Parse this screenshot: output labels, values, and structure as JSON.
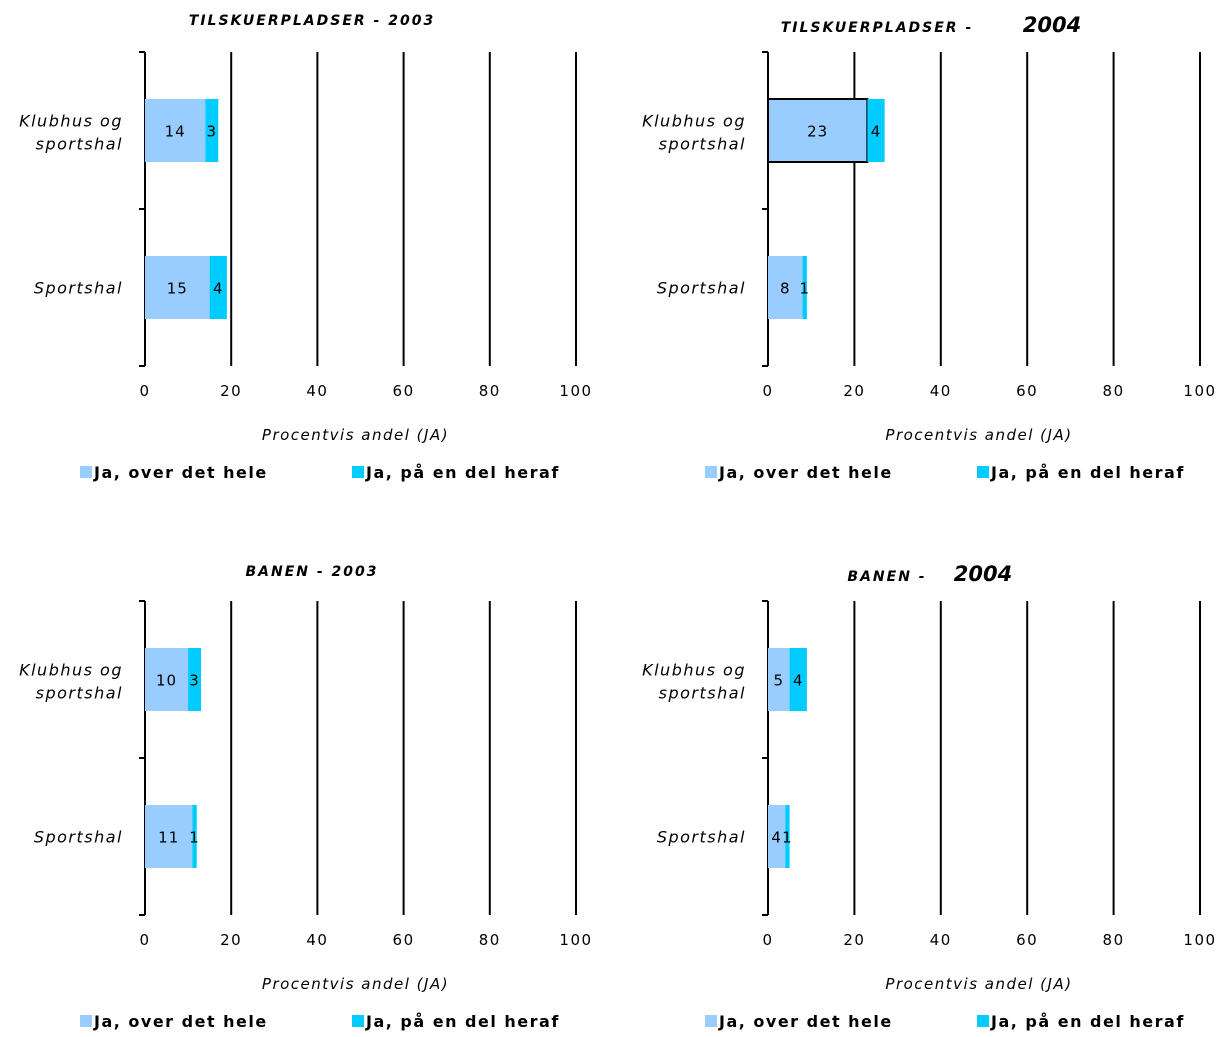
{
  "chart_data": [
    {
      "type": "bar",
      "orientation": "horizontal",
      "stacked": true,
      "title": "TILSKUERPLADSER - 2003",
      "title_year": "",
      "categories": [
        "Klubhus og sportshal",
        "Sportshal"
      ],
      "series": [
        {
          "name": "Ja, over det hele",
          "values": [
            14,
            15
          ]
        },
        {
          "name": "Ja, på en del heraf",
          "values": [
            3,
            4
          ]
        }
      ],
      "xlabel": "Procentvis andel (JA)",
      "xlim": [
        0,
        100
      ],
      "xticks": [
        "0",
        "20",
        "40",
        "60",
        "80",
        "100"
      ],
      "grid": true,
      "legend_position": "bottom"
    },
    {
      "type": "bar",
      "orientation": "horizontal",
      "stacked": true,
      "title": "TILSKUERPLADSER -",
      "title_year": "2004",
      "categories": [
        "Klubhus og sportshal",
        "Sportshal"
      ],
      "series": [
        {
          "name": "Ja, over det hele",
          "values": [
            23,
            8
          ]
        },
        {
          "name": "Ja, på en del heraf",
          "values": [
            4,
            1
          ]
        }
      ],
      "xlabel": "Procentvis andel (JA)",
      "xlim": [
        0,
        100
      ],
      "xticks": [
        "0",
        "20",
        "40",
        "60",
        "80",
        "100"
      ],
      "grid": true,
      "legend_position": "bottom"
    },
    {
      "type": "bar",
      "orientation": "horizontal",
      "stacked": true,
      "title": "BANEN - 2003",
      "title_year": "",
      "categories": [
        "Klubhus og sportshal",
        "Sportshal"
      ],
      "series": [
        {
          "name": "Ja, over det hele",
          "values": [
            10,
            11
          ]
        },
        {
          "name": "Ja, på en del heraf",
          "values": [
            3,
            1
          ]
        }
      ],
      "xlabel": "Procentvis andel (JA)",
      "xlim": [
        0,
        100
      ],
      "xticks": [
        "0",
        "20",
        "40",
        "60",
        "80",
        "100"
      ],
      "grid": true,
      "legend_position": "bottom"
    },
    {
      "type": "bar",
      "orientation": "horizontal",
      "stacked": true,
      "title": "BANEN -",
      "title_year": "2004",
      "categories": [
        "Klubhus og sportshal",
        "Sportshal"
      ],
      "series": [
        {
          "name": "Ja, over det hele",
          "values": [
            5,
            4
          ]
        },
        {
          "name": "Ja, på en del heraf",
          "values": [
            4,
            1
          ]
        }
      ],
      "xlabel": "Procentvis andel (JA)",
      "xlim": [
        0,
        100
      ],
      "xticks": [
        "0",
        "20",
        "40",
        "60",
        "80",
        "100"
      ],
      "grid": true,
      "legend_position": "bottom"
    }
  ],
  "colors": {
    "series_1": "#99ccff",
    "series_2": "#00ccff",
    "grid": "#000000",
    "background": "#ffffff"
  }
}
